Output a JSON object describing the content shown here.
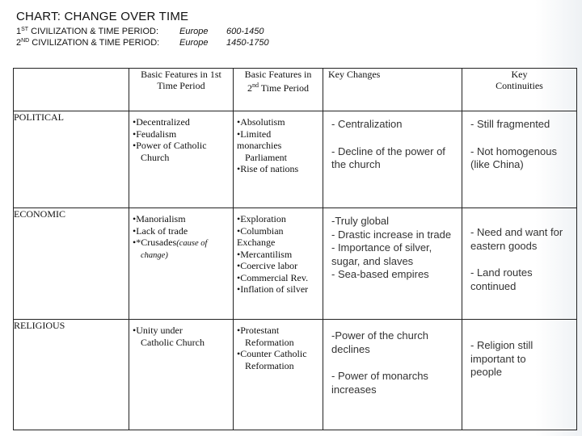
{
  "header": {
    "title": "CHART: CHANGE OVER TIME",
    "line1": {
      "num": "1",
      "sup": "ST",
      "label": " CIVILIZATION & TIME PERIOD:",
      "region": "Europe",
      "period": "600-1450"
    },
    "line2": {
      "num": "2",
      "sup": "ND",
      "label": " CIVILIZATION & TIME PERIOD:",
      "region": "Europe",
      "period": "1450-1750"
    }
  },
  "table": {
    "headers": {
      "c1_a": "Basic Features in 1st",
      "c1_b": "Time Period",
      "c2_a": "Basic Features in",
      "c2_num": "2",
      "c2_sup": "nd",
      "c2_b": " Time Period",
      "c3": "Key Changes",
      "c4_a": "Key",
      "c4_b": "Continuities"
    },
    "rows": {
      "political": {
        "label": "POLITICAL",
        "first": [
          "Decentralized",
          "Feudalism",
          "Power of Catholic"
        ],
        "first_cont": "Church",
        "second": [
          "Absolutism",
          "Limited"
        ],
        "second_cont1": "monarchies",
        "second_cont2": "Parliament",
        "second_last": "Rise of nations",
        "changes": [
          "- Centralization",
          "- Decline of the power of the church"
        ],
        "continuities": [
          " - Still fragmented",
          "- Not homogenous (like China)"
        ]
      },
      "economic": {
        "label": "ECONOMIC",
        "first": [
          "Manorialism",
          "Lack of trade",
          "*Crusades"
        ],
        "first_note": "(cause of",
        "first_note2": "change)",
        "second": [
          "Exploration",
          "Columbian"
        ],
        "second_cont": "Exchange",
        "second_rest": [
          "Mercantilism",
          "Coercive labor",
          "Commercial Rev.",
          "Inflation of silver"
        ],
        "changes": [
          "-Truly global",
          "- Drastic increase in trade",
          "- Importance of silver, sugar, and slaves",
          "- Sea-based empires"
        ],
        "continuities": [
          "- Need and want for eastern goods",
          "- Land routes continued"
        ]
      },
      "religious": {
        "label": "RELIGIOUS",
        "first": [
          "Unity under"
        ],
        "first_cont": "Catholic Church",
        "second": [
          "Protestant"
        ],
        "second_cont": "Reformation",
        "second2": [
          "Counter Catholic"
        ],
        "second2_cont": "Reformation",
        "changes": [
          "-Power of the church declines",
          "- Power of monarchs increases"
        ],
        "continuities": [
          "- Religion still important to people"
        ]
      }
    }
  }
}
